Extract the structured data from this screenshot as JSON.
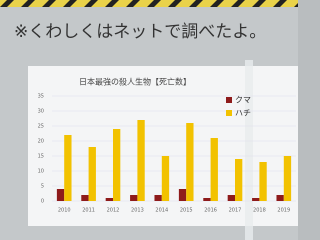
{
  "note": "※くわしくはネットで調べたよ。",
  "chart_data": {
    "type": "bar",
    "title": "日本最強の殺人生物【死亡数】",
    "categories": [
      "2010",
      "2011",
      "2012",
      "2013",
      "2014",
      "2015",
      "2016",
      "2017",
      "2018",
      "2019"
    ],
    "series": [
      {
        "name": "クマ",
        "color": "#8e1b1b",
        "values": [
          4,
          2,
          1,
          2,
          2,
          4,
          1,
          2,
          1,
          2
        ]
      },
      {
        "name": "ハチ",
        "color": "#f2c200",
        "values": [
          22,
          18,
          24,
          27,
          15,
          26,
          21,
          14,
          13,
          15
        ]
      }
    ],
    "ylim": [
      0,
      35
    ],
    "yticks": [
      0,
      5,
      10,
      15,
      20,
      25,
      30,
      35
    ],
    "grid": true,
    "legend": "top-right"
  }
}
